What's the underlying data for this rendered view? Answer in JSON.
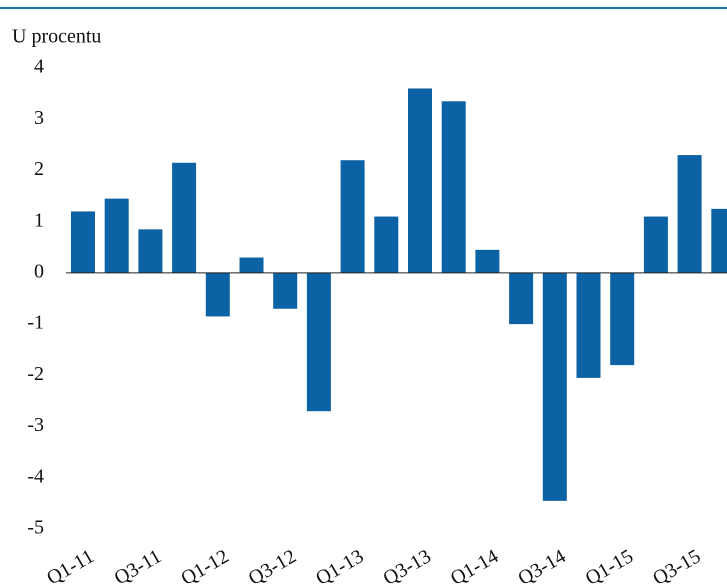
{
  "chart_data": {
    "type": "bar",
    "y_axis_label": "U procentu",
    "categories": [
      "Q1-11",
      null,
      "Q3-11",
      null,
      "Q1-12",
      null,
      "Q3-12",
      null,
      "Q1-13",
      null,
      "Q3-13",
      null,
      "Q1-14",
      null,
      "Q3-14",
      null,
      "Q1-15",
      null,
      "Q3-15",
      null
    ],
    "values": [
      1.2,
      1.45,
      0.85,
      2.15,
      -0.85,
      0.3,
      -0.7,
      -2.7,
      2.2,
      1.1,
      3.6,
      3.35,
      0.45,
      -1.0,
      -4.45,
      -2.05,
      -1.8,
      1.1,
      2.3,
      1.25
    ],
    "color": "#0b62a4",
    "ylim": [
      -5,
      4
    ],
    "yticks": [
      -5,
      -4,
      -3,
      -2,
      -1,
      0,
      1,
      2,
      3,
      4
    ],
    "grid": false
  }
}
